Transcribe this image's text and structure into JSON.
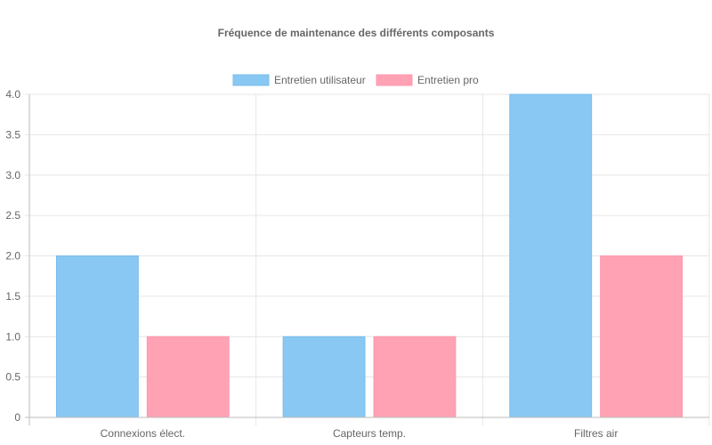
{
  "chart_data": {
    "type": "bar",
    "title": "Fréquence de maintenance des différents composants",
    "categories": [
      "Connexions élect.",
      "Capteurs temp.",
      "Filtres air"
    ],
    "series": [
      {
        "name": "Entretien utilisateur",
        "values": [
          2,
          1,
          4
        ],
        "color": "#88c8f2",
        "border": "#7bbcec"
      },
      {
        "name": "Entretien pro",
        "values": [
          1,
          1,
          2
        ],
        "color": "#ffa2b4",
        "border": "#ff98ad"
      }
    ],
    "ylim": [
      0,
      4
    ],
    "yticks": [
      "0",
      "0.5",
      "1.0",
      "1.5",
      "2.0",
      "2.5",
      "3.0",
      "3.5",
      "4.0"
    ],
    "grid": true,
    "legend_position": "top"
  }
}
